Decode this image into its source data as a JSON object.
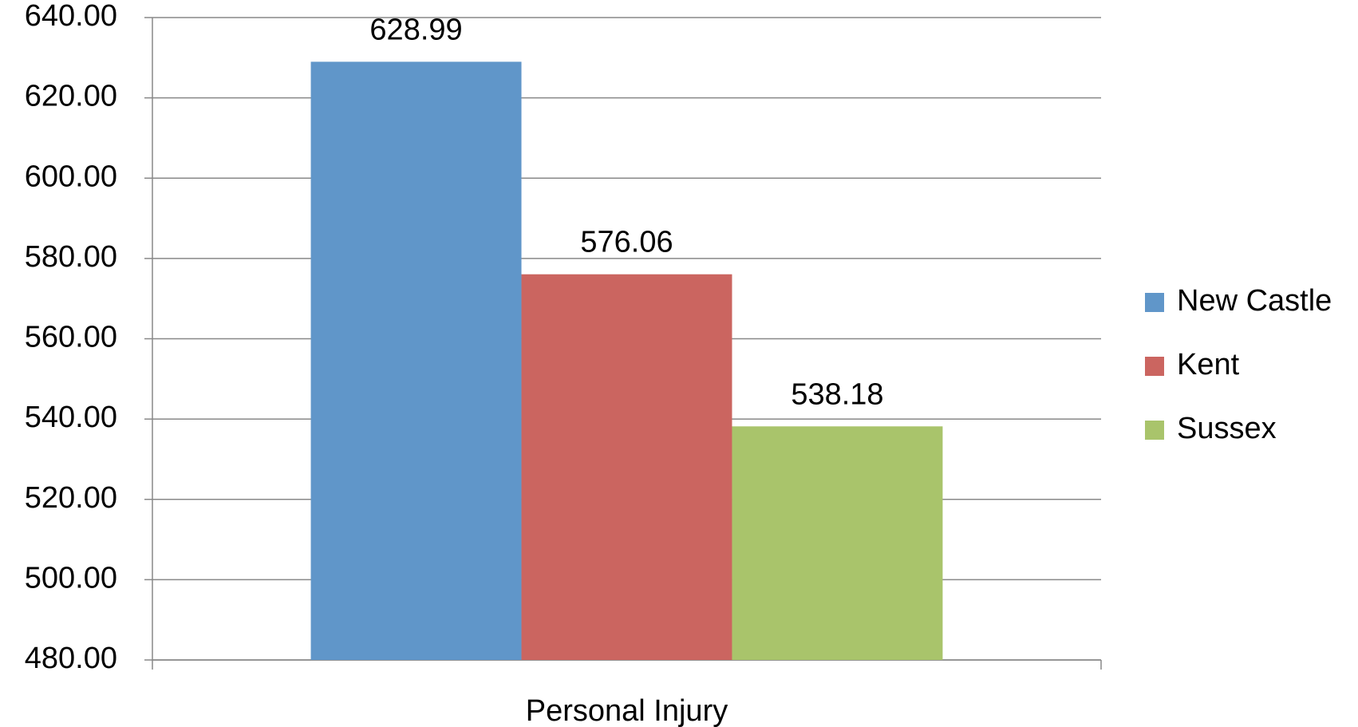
{
  "chart_data": {
    "type": "bar",
    "categories": [
      "Personal Injury"
    ],
    "series": [
      {
        "name": "New Castle",
        "color": "#6096c9",
        "values": [
          628.99
        ]
      },
      {
        "name": "Kent",
        "color": "#cb6560",
        "values": [
          576.06
        ]
      },
      {
        "name": "Sussex",
        "color": "#a9c46b",
        "values": [
          538.18
        ]
      }
    ],
    "ylim": [
      480,
      640
    ],
    "yticks": [
      {
        "value": 480,
        "label": "480.00"
      },
      {
        "value": 500,
        "label": "500.00"
      },
      {
        "value": 520,
        "label": "520.00"
      },
      {
        "value": 540,
        "label": "540.00"
      },
      {
        "value": 560,
        "label": "560.00"
      },
      {
        "value": 580,
        "label": "580.00"
      },
      {
        "value": 600,
        "label": "600.00"
      },
      {
        "value": 620,
        "label": "620.00"
      },
      {
        "value": 640,
        "label": "640.00"
      }
    ],
    "grid": true,
    "legend": "right"
  }
}
